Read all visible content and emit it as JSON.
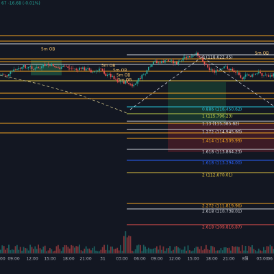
{
  "header": {
    "quote": "67  -16.68 (-0.01%)"
  },
  "order_blocks": [
    "5m OB",
    "5m OB",
    "5m OB",
    "5m OB",
    "5m OB",
    "5m OB"
  ],
  "fib_levels": [
    {
      "label": "0 (118,622.45)",
      "color": "#d1d4dc"
    },
    {
      "label": "0.886 (116,450.62)",
      "color": "#26c6da"
    },
    {
      "label": "1 (115,796.23)",
      "color": "#c6d44a"
    },
    {
      "label": "1.13 (115,385.82)",
      "color": "#d1d4dc"
    },
    {
      "label": "1.272 (114,945.90)",
      "color": "#d1d4dc"
    },
    {
      "label": "1.414 (114,509.99)",
      "color": "#f5a623"
    },
    {
      "label": "1.618 (113,864.23)",
      "color": "#d1d4dc"
    },
    {
      "label": "1.618 (113,394.00)",
      "color": "#2962ff"
    },
    {
      "label": "2 (112,670.01)",
      "color": "#e0c341"
    },
    {
      "label": "2.272 (111,819.96)",
      "color": "#f5a623"
    },
    {
      "label": "2.618 (110,738.01)",
      "color": "#d1d4dc"
    },
    {
      "label": "2.618 (109,816.87)",
      "color": "#ef5350"
    }
  ],
  "time_axis": [
    "00",
    "09:00",
    "12:00",
    "15:00",
    "18:00",
    "21:00",
    "31",
    "03:00",
    "06:00",
    "09:00",
    "12:00",
    "15:00",
    "18:00",
    "21:00",
    "8월",
    "03:00",
    "06"
  ]
}
